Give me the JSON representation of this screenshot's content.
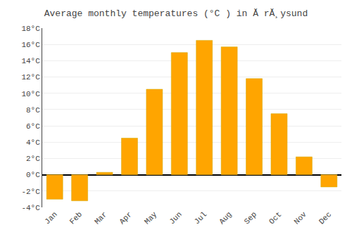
{
  "chart_data": {
    "type": "bar",
    "title": "Average monthly temperatures (°C ) in Ă rĂ¸ysund",
    "categories": [
      "Jan",
      "Feb",
      "Mar",
      "Apr",
      "May",
      "Jun",
      "Jul",
      "Aug",
      "Sep",
      "Oct",
      "Nov",
      "Dec"
    ],
    "values": [
      -3.0,
      -3.2,
      0.3,
      4.5,
      10.5,
      15.0,
      16.5,
      15.7,
      11.8,
      7.5,
      2.2,
      -1.5
    ],
    "color": "#FFA500",
    "ylim": [
      -4,
      18
    ],
    "yticks": [
      {
        "value": -4,
        "label": "-4°C"
      },
      {
        "value": -2,
        "label": "-2°C"
      },
      {
        "value": 0,
        "label": "0°C"
      },
      {
        "value": 2,
        "label": "2°C"
      },
      {
        "value": 4,
        "label": "4°C"
      },
      {
        "value": 6,
        "label": "6°C"
      },
      {
        "value": 8,
        "label": "8°C"
      },
      {
        "value": 10,
        "label": "10°C"
      },
      {
        "value": 12,
        "label": "12°C"
      },
      {
        "value": 14,
        "label": "14°C"
      },
      {
        "value": 16,
        "label": "16°C"
      },
      {
        "value": 18,
        "label": "18°C"
      }
    ],
    "grid": true
  }
}
